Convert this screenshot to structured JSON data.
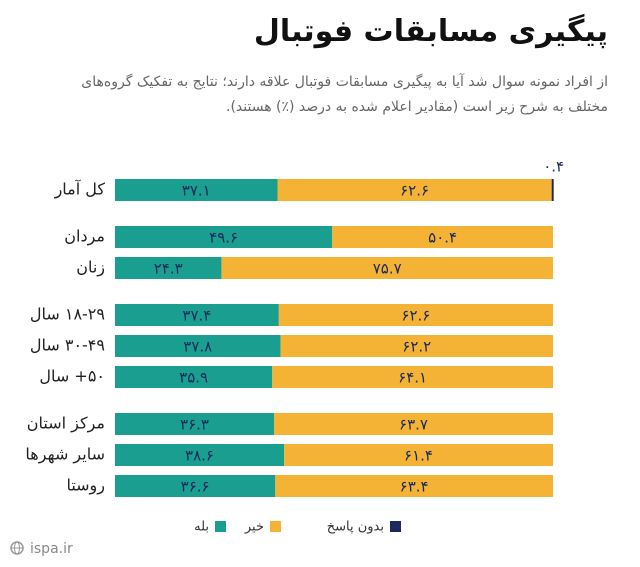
{
  "chart_data": {
    "type": "stacked-bar-horizontal",
    "title": "پیگیری مسابقات فوتبال",
    "subtitle": "از افراد نمونه سوال شد آیا به پیگیری مسابقات فوتبال علاقه دارند؛ نتایج به تفکیک گروه‌های مختلف به شرح زیر است (مقادیر اعلام شده به درصد (٪) هستند).",
    "categories": [
      "کل آمار",
      "مردان",
      "زنان",
      "۱۸-۲۹ سال",
      "۳۰-۴۹ سال",
      "۵۰+ سال",
      "مرکز استان",
      "سایر شهرها",
      "روستا"
    ],
    "xlim": [
      0,
      100
    ],
    "series": [
      {
        "name": "بله",
        "color": "#1a9e8f",
        "values": [
          37.1,
          49.6,
          24.3,
          37.4,
          37.8,
          35.9,
          36.3,
          38.6,
          36.6
        ],
        "value_labels": [
          "۳۷.۱",
          "۴۹.۶",
          "۲۴.۳",
          "۳۷.۴",
          "۳۷.۸",
          "۳۵.۹",
          "۳۶.۳",
          "۳۸.۶",
          "۳۶.۶"
        ]
      },
      {
        "name": "خیر",
        "color": "#f5b335",
        "values": [
          62.6,
          50.4,
          75.7,
          62.6,
          62.2,
          64.1,
          63.7,
          61.4,
          63.4
        ],
        "value_labels": [
          "۶۲.۶",
          "۵۰.۴",
          "۷۵.۷",
          "۶۲.۶",
          "۶۲.۲",
          "۶۴.۱",
          "۶۳.۷",
          "۶۱.۴",
          "۶۳.۴"
        ]
      },
      {
        "name": "بدون پاسخ",
        "color": "#1b2a5c",
        "values": [
          0.4,
          null,
          null,
          null,
          null,
          null,
          null,
          null,
          null
        ],
        "value_labels": [
          "۰.۴",
          null,
          null,
          null,
          null,
          null,
          null,
          null,
          null
        ]
      }
    ],
    "footer": "ispa.ir"
  }
}
